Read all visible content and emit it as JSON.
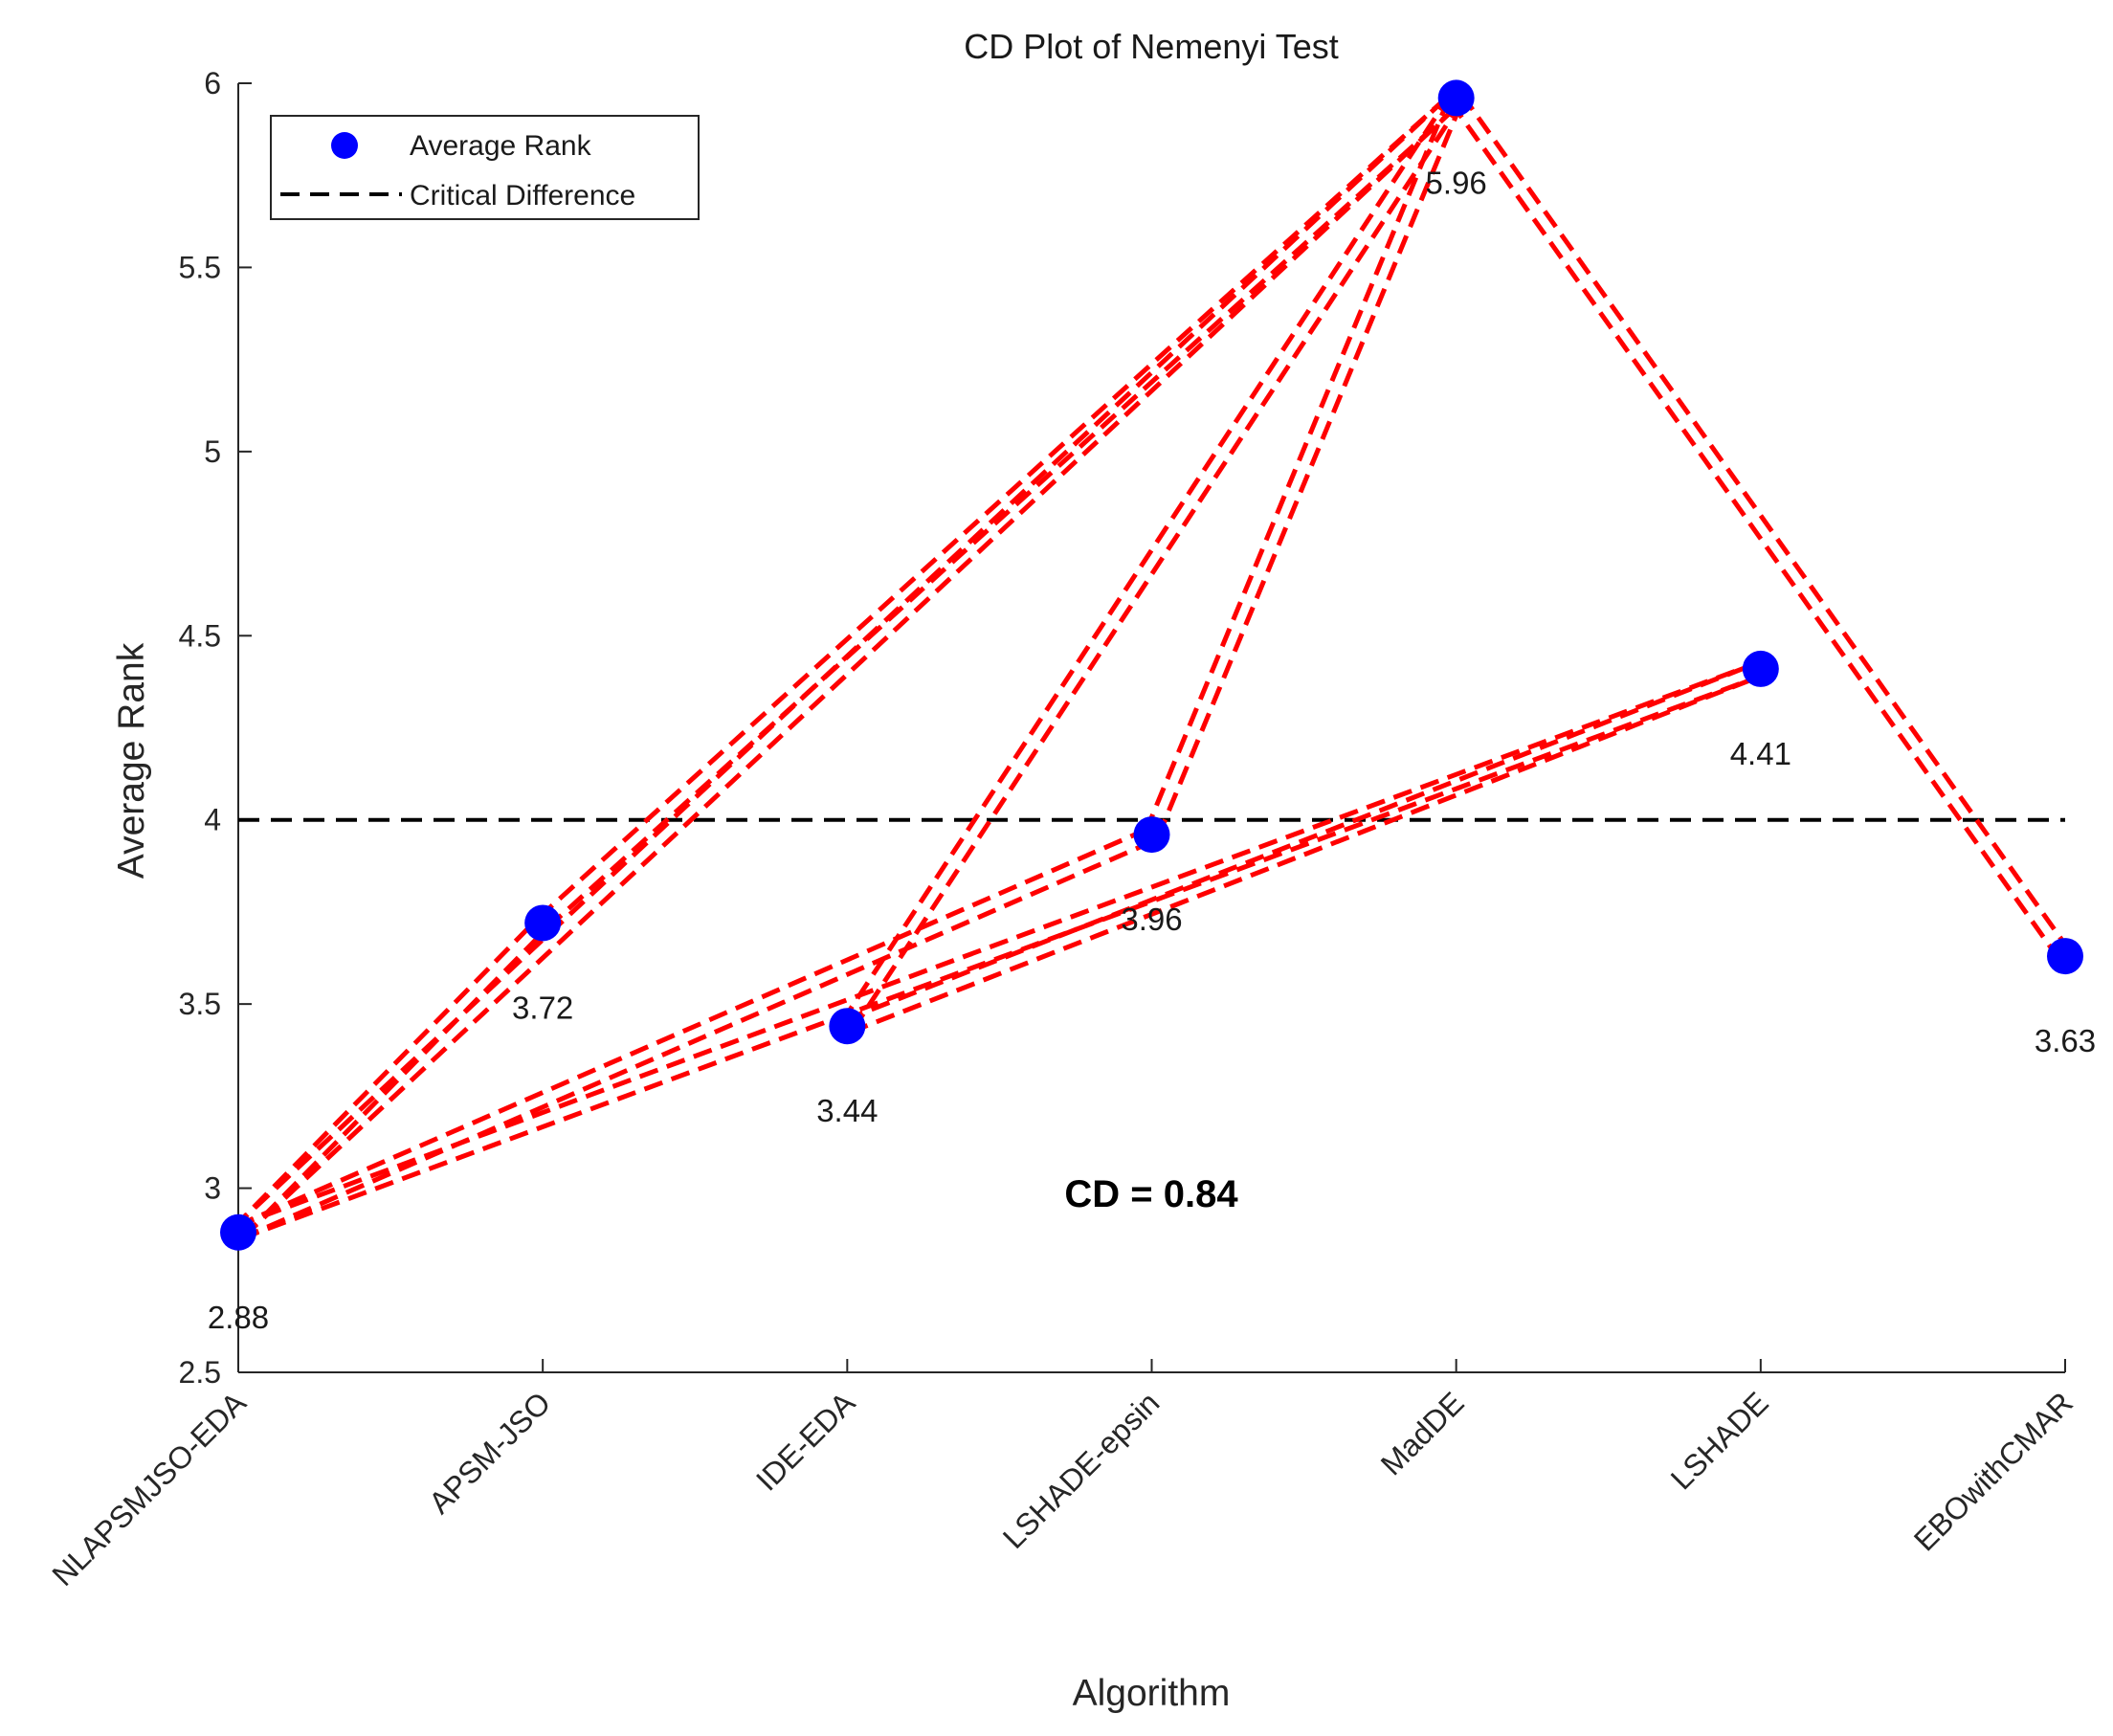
{
  "chart_data": {
    "type": "scatter",
    "title": "CD Plot of Nemenyi Test",
    "xlabel": "Algorithm",
    "ylabel": "Average Rank",
    "ylim": [
      2.5,
      6
    ],
    "yticks": [
      "2.5",
      "3",
      "3.5",
      "4",
      "4.5",
      "5",
      "5.5",
      "6"
    ],
    "categories": [
      "NLAPSMJSO-EDA",
      "APSM-JSO",
      "IDE-EDA",
      "LSHADE-epsin",
      "MadDE",
      "LSHADE",
      "EBOwithCMAR"
    ],
    "values": [
      2.88,
      3.72,
      3.44,
      3.96,
      5.96,
      4.41,
      3.63
    ],
    "value_labels": [
      "2.88",
      "3.72",
      "3.44",
      "3.96",
      "5.96",
      "4.41",
      "3.63"
    ],
    "critical_difference_line": 4.0,
    "cd_annotation": "CD = 0.84",
    "connections": [
      [
        0,
        1
      ],
      [
        0,
        4
      ],
      [
        0,
        3
      ],
      [
        0,
        5
      ],
      [
        1,
        4
      ],
      [
        2,
        4
      ],
      [
        2,
        5
      ],
      [
        3,
        4
      ],
      [
        4,
        6
      ]
    ],
    "legend": {
      "position": "top-left",
      "entries": [
        "Average Rank",
        "Critical Difference"
      ]
    },
    "colors": {
      "points": "#0000ff",
      "connections": "#ff0000",
      "cd_line": "#000000",
      "axes": "#262626"
    }
  }
}
